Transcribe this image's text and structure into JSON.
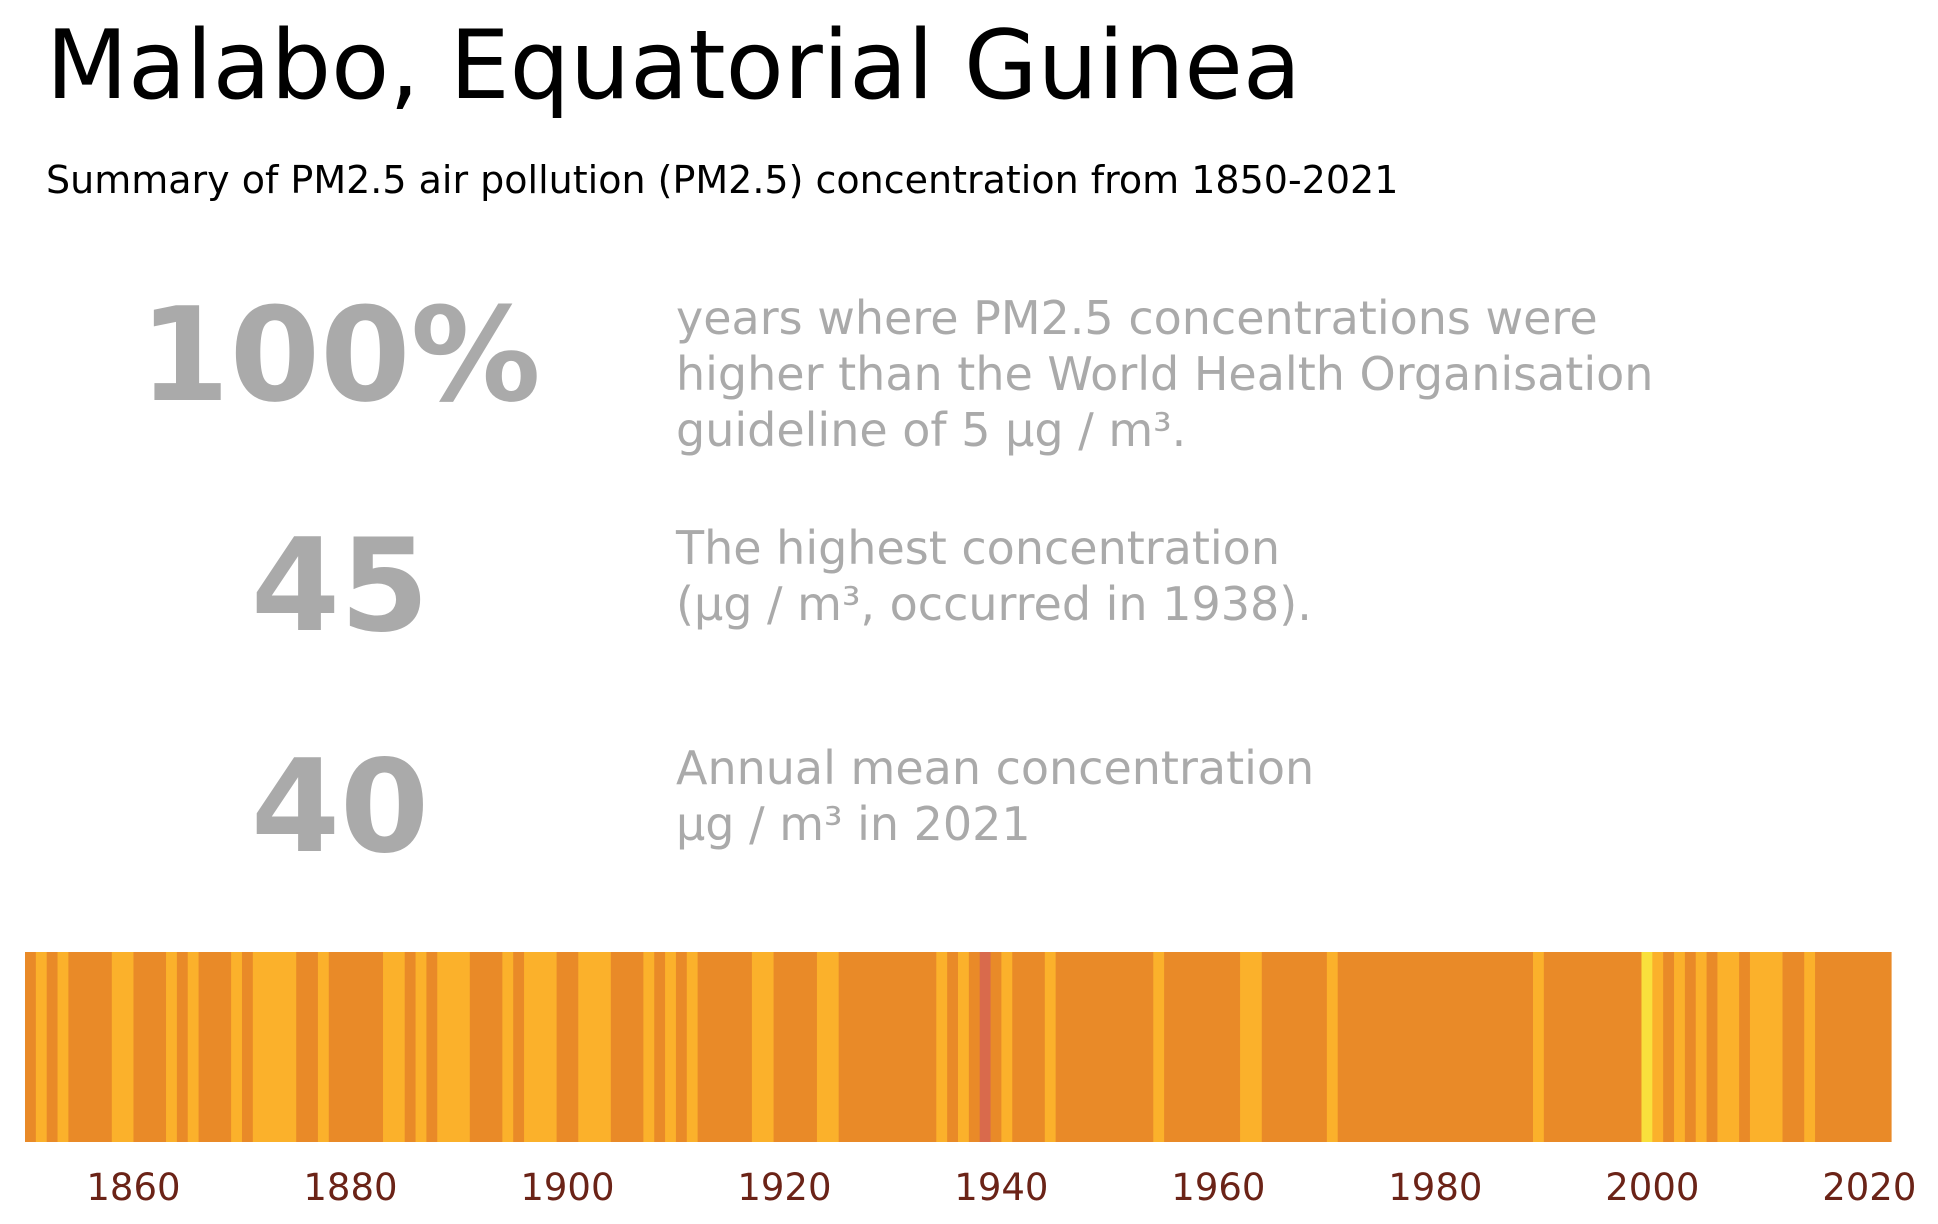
{
  "header": {
    "title": "Malabo, Equatorial Guinea",
    "subtitle": "Summary of PM2.5 air pollution (PM2.5) concentration from 1850-2021"
  },
  "stats": [
    {
      "value": "100%",
      "description": "years where PM2.5 concentrations were\nhigher than the World Health Organisation\nguideline of 5 µg / m³."
    },
    {
      "value": "45",
      "description": "The highest concentration\n(µg / m³, occurred in 1938)."
    },
    {
      "value": "40",
      "description": "Annual mean concentration\nµg / m³ in 2021"
    }
  ],
  "colors": {
    "stat_text": "#aaaaaa",
    "tick_text": "#6b2317",
    "low": "#f9e03c",
    "mid_low": "#fbb12b",
    "mid": "#e98a28",
    "high": "#d96a4c"
  },
  "chart_data": {
    "type": "heatmap",
    "title": "",
    "xlabel": "",
    "ylabel": "",
    "xlim": [
      1850,
      2022
    ],
    "x_ticks": [
      1860,
      1880,
      1900,
      1920,
      1940,
      1960,
      1980,
      2000,
      2020
    ],
    "x_tick_labels": [
      "1860",
      "1880",
      "1900",
      "1920",
      "1940",
      "1960",
      "1980",
      "2000",
      "2020"
    ],
    "segments": [
      {
        "start": 1850,
        "end": 1851,
        "category": "mid"
      },
      {
        "start": 1851,
        "end": 1852,
        "category": "mid_low"
      },
      {
        "start": 1852,
        "end": 1853,
        "category": "mid"
      },
      {
        "start": 1853,
        "end": 1854,
        "category": "mid_low"
      },
      {
        "start": 1854,
        "end": 1858,
        "category": "mid"
      },
      {
        "start": 1858,
        "end": 1860,
        "category": "mid_low"
      },
      {
        "start": 1860,
        "end": 1863,
        "category": "mid"
      },
      {
        "start": 1863,
        "end": 1864,
        "category": "mid_low"
      },
      {
        "start": 1864,
        "end": 1865,
        "category": "mid"
      },
      {
        "start": 1865,
        "end": 1866,
        "category": "mid_low"
      },
      {
        "start": 1866,
        "end": 1869,
        "category": "mid"
      },
      {
        "start": 1869,
        "end": 1870,
        "category": "mid_low"
      },
      {
        "start": 1870,
        "end": 1871,
        "category": "mid"
      },
      {
        "start": 1871,
        "end": 1875,
        "category": "mid_low"
      },
      {
        "start": 1875,
        "end": 1877,
        "category": "mid"
      },
      {
        "start": 1877,
        "end": 1878,
        "category": "mid_low"
      },
      {
        "start": 1878,
        "end": 1883,
        "category": "mid"
      },
      {
        "start": 1883,
        "end": 1885,
        "category": "mid_low"
      },
      {
        "start": 1885,
        "end": 1886,
        "category": "mid"
      },
      {
        "start": 1886,
        "end": 1887,
        "category": "mid_low"
      },
      {
        "start": 1887,
        "end": 1888,
        "category": "mid"
      },
      {
        "start": 1888,
        "end": 1891,
        "category": "mid_low"
      },
      {
        "start": 1891,
        "end": 1894,
        "category": "mid"
      },
      {
        "start": 1894,
        "end": 1895,
        "category": "mid_low"
      },
      {
        "start": 1895,
        "end": 1896,
        "category": "mid"
      },
      {
        "start": 1896,
        "end": 1899,
        "category": "mid_low"
      },
      {
        "start": 1899,
        "end": 1901,
        "category": "mid"
      },
      {
        "start": 1901,
        "end": 1904,
        "category": "mid_low"
      },
      {
        "start": 1904,
        "end": 1907,
        "category": "mid"
      },
      {
        "start": 1907,
        "end": 1908,
        "category": "mid_low"
      },
      {
        "start": 1908,
        "end": 1909,
        "category": "mid"
      },
      {
        "start": 1909,
        "end": 1910,
        "category": "mid_low"
      },
      {
        "start": 1910,
        "end": 1911,
        "category": "mid"
      },
      {
        "start": 1911,
        "end": 1912,
        "category": "mid_low"
      },
      {
        "start": 1912,
        "end": 1917,
        "category": "mid"
      },
      {
        "start": 1917,
        "end": 1919,
        "category": "mid_low"
      },
      {
        "start": 1919,
        "end": 1923,
        "category": "mid"
      },
      {
        "start": 1923,
        "end": 1925,
        "category": "mid_low"
      },
      {
        "start": 1925,
        "end": 1934,
        "category": "mid"
      },
      {
        "start": 1934,
        "end": 1935,
        "category": "mid_low"
      },
      {
        "start": 1935,
        "end": 1936,
        "category": "mid"
      },
      {
        "start": 1936,
        "end": 1937,
        "category": "mid_low"
      },
      {
        "start": 1937,
        "end": 1938,
        "category": "mid"
      },
      {
        "start": 1938,
        "end": 1939,
        "category": "high"
      },
      {
        "start": 1939,
        "end": 1940,
        "category": "mid"
      },
      {
        "start": 1940,
        "end": 1941,
        "category": "mid_low"
      },
      {
        "start": 1941,
        "end": 1944,
        "category": "mid"
      },
      {
        "start": 1944,
        "end": 1945,
        "category": "mid_low"
      },
      {
        "start": 1945,
        "end": 1954,
        "category": "mid"
      },
      {
        "start": 1954,
        "end": 1955,
        "category": "mid_low"
      },
      {
        "start": 1955,
        "end": 1962,
        "category": "mid"
      },
      {
        "start": 1962,
        "end": 1964,
        "category": "mid_low"
      },
      {
        "start": 1964,
        "end": 1970,
        "category": "mid"
      },
      {
        "start": 1970,
        "end": 1971,
        "category": "mid_low"
      },
      {
        "start": 1971,
        "end": 1989,
        "category": "mid"
      },
      {
        "start": 1989,
        "end": 1990,
        "category": "mid_low"
      },
      {
        "start": 1990,
        "end": 1999,
        "category": "mid"
      },
      {
        "start": 1999,
        "end": 2000,
        "category": "low"
      },
      {
        "start": 2000,
        "end": 2001,
        "category": "mid_low"
      },
      {
        "start": 2001,
        "end": 2002,
        "category": "mid"
      },
      {
        "start": 2002,
        "end": 2003,
        "category": "mid_low"
      },
      {
        "start": 2003,
        "end": 2004,
        "category": "mid"
      },
      {
        "start": 2004,
        "end": 2005,
        "category": "mid_low"
      },
      {
        "start": 2005,
        "end": 2006,
        "category": "mid"
      },
      {
        "start": 2006,
        "end": 2008,
        "category": "mid_low"
      },
      {
        "start": 2008,
        "end": 2009,
        "category": "mid"
      },
      {
        "start": 2009,
        "end": 2012,
        "category": "mid_low"
      },
      {
        "start": 2012,
        "end": 2014,
        "category": "mid"
      },
      {
        "start": 2014,
        "end": 2015,
        "category": "mid_low"
      },
      {
        "start": 2015,
        "end": 2022,
        "category": "mid"
      }
    ]
  }
}
